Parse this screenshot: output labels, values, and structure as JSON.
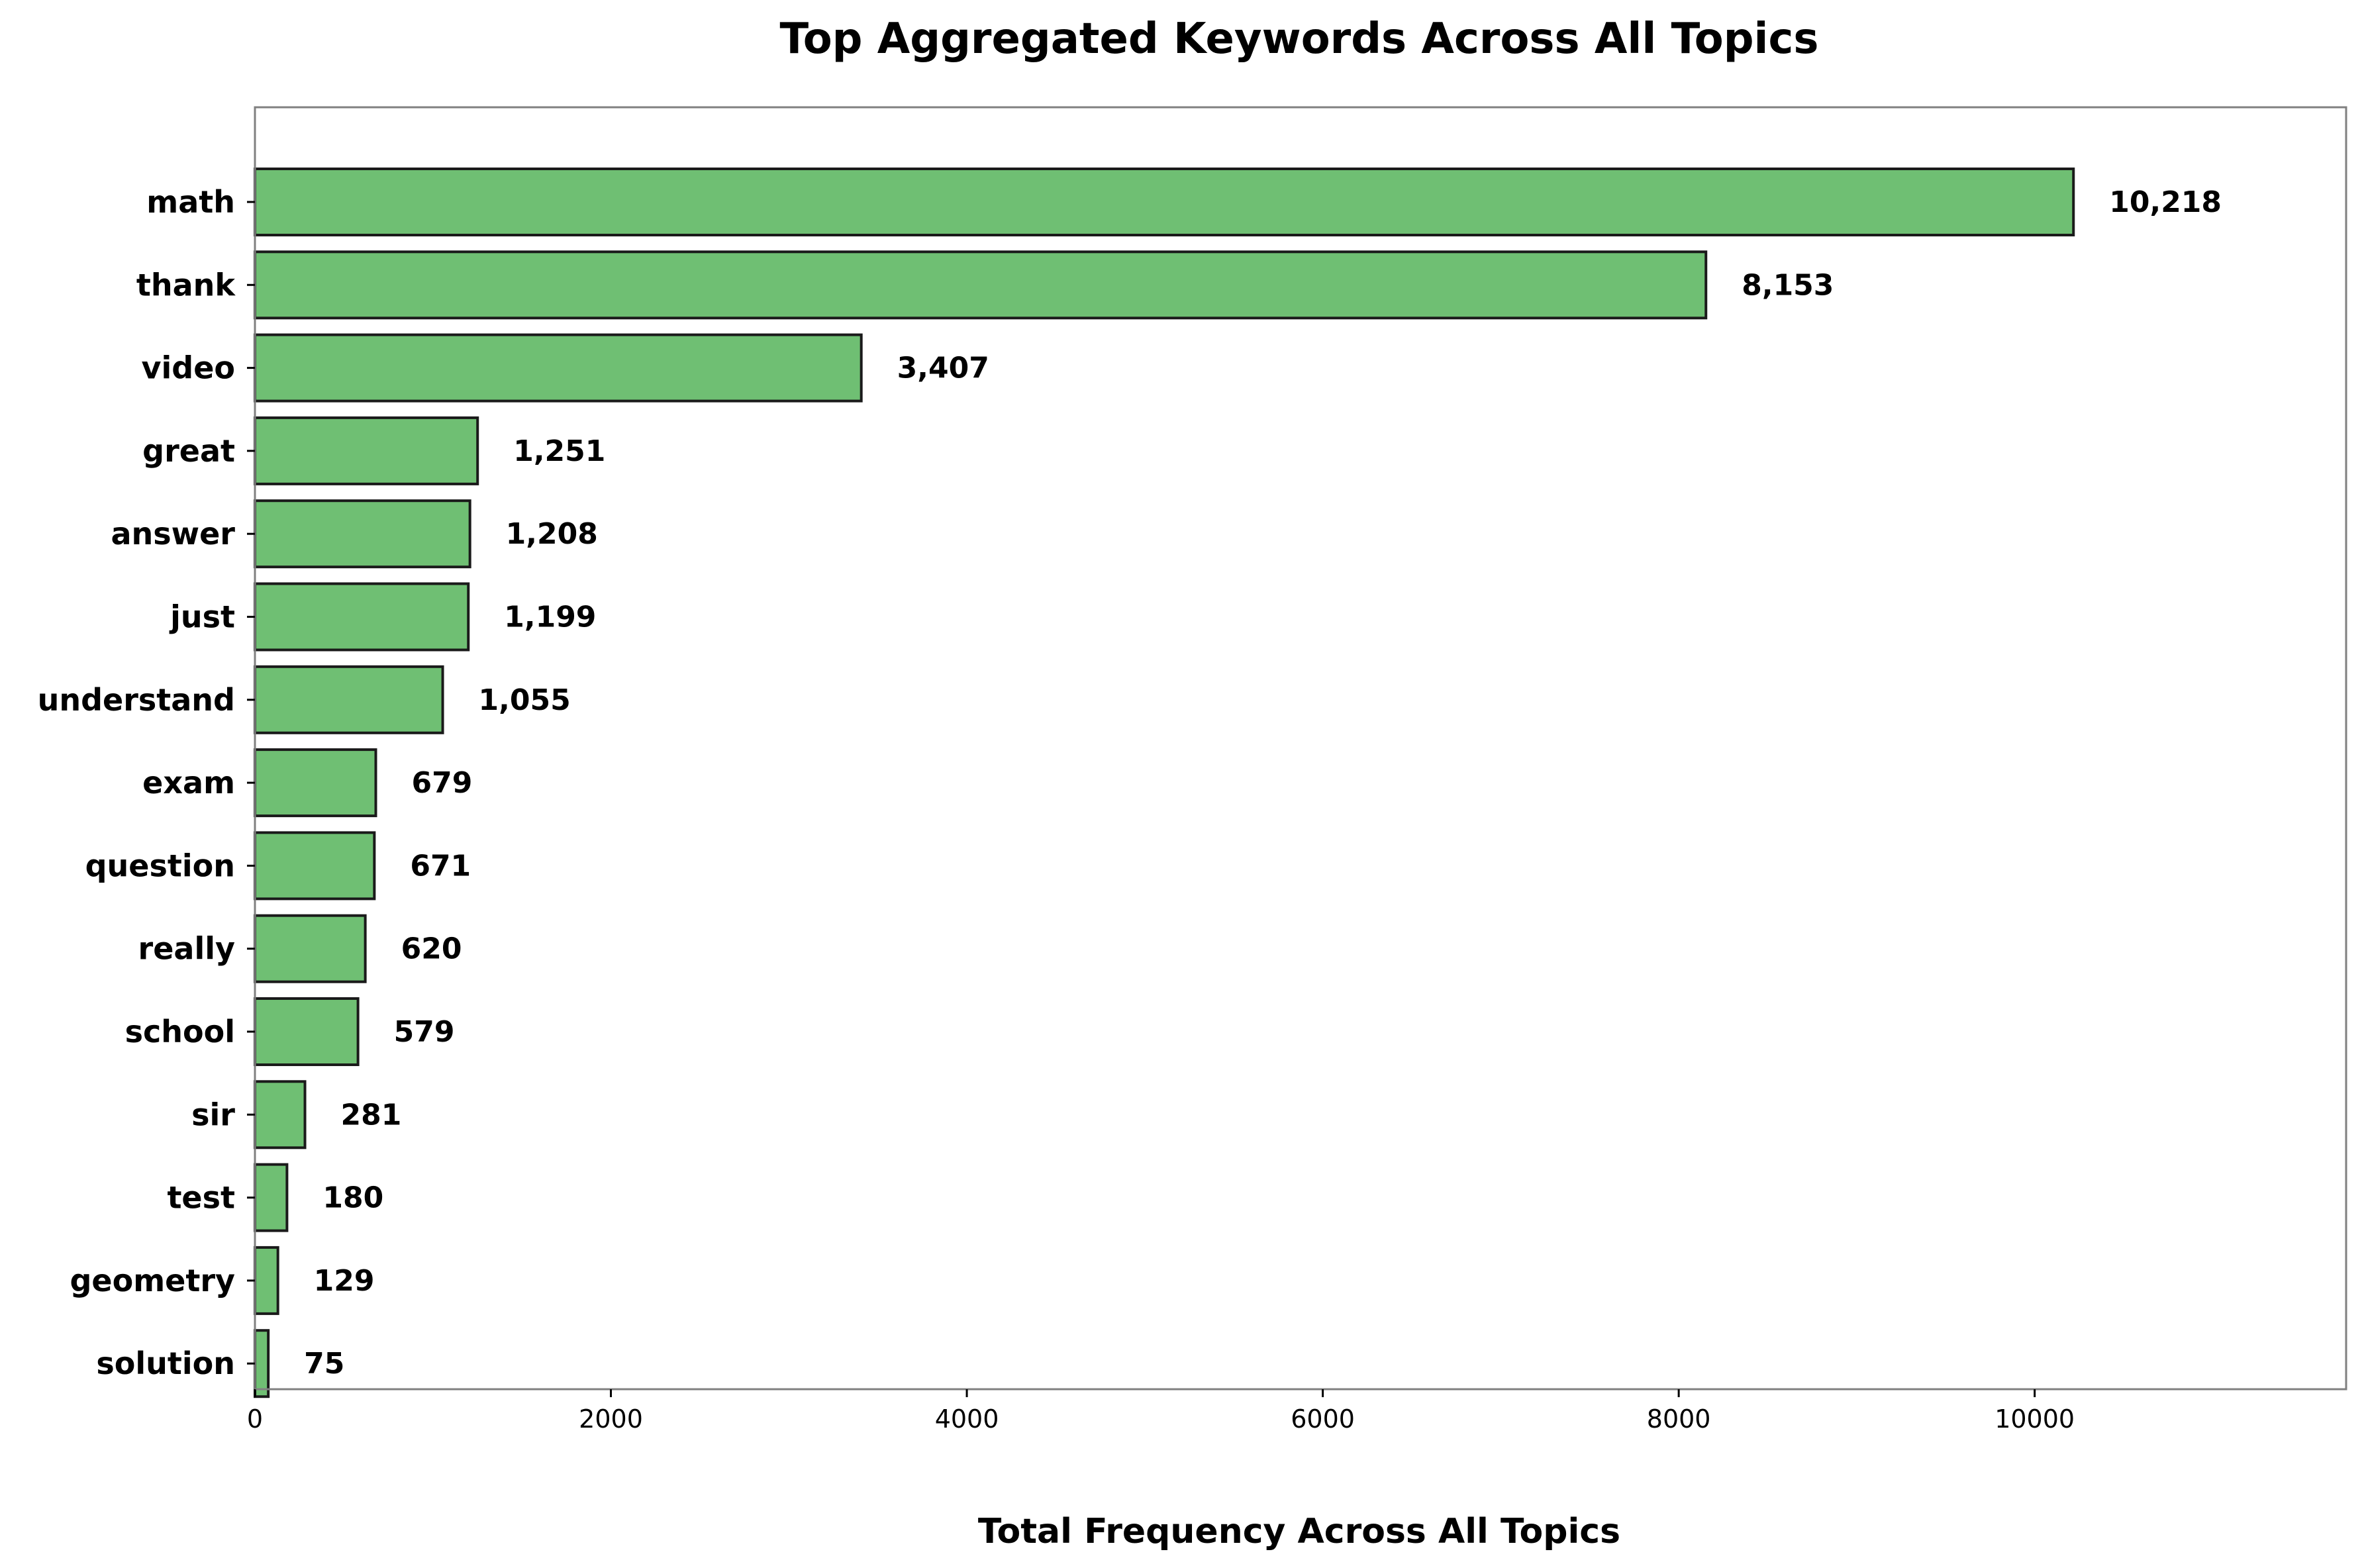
{
  "chart_data": {
    "type": "bar",
    "orientation": "horizontal",
    "title": "Top Aggregated Keywords Across All Topics",
    "xlabel": "Total Frequency Across All Topics",
    "ylabel": "",
    "categories": [
      "math",
      "thank",
      "video",
      "great",
      "answer",
      "just",
      "understand",
      "exam",
      "question",
      "really",
      "school",
      "sir",
      "test",
      "geometry",
      "solution"
    ],
    "values": [
      10218,
      8153,
      3407,
      1251,
      1208,
      1199,
      1055,
      679,
      671,
      620,
      579,
      281,
      180,
      129,
      75
    ],
    "value_labels": [
      "10,218",
      "8,153",
      "3,407",
      "1,251",
      "1,208",
      "1,199",
      "1,055",
      "679",
      "671",
      "620",
      "579",
      "281",
      "180",
      "129",
      "75"
    ],
    "xlim": [
      0,
      11750
    ],
    "xticks": [
      0,
      2000,
      4000,
      6000,
      8000,
      10000
    ],
    "xtick_labels": [
      "0",
      "2000",
      "4000",
      "6000",
      "8000",
      "10000"
    ],
    "grid": false,
    "legend": "none",
    "bar_color": "#6fbf73",
    "edge_color": "#1a1a1a"
  }
}
